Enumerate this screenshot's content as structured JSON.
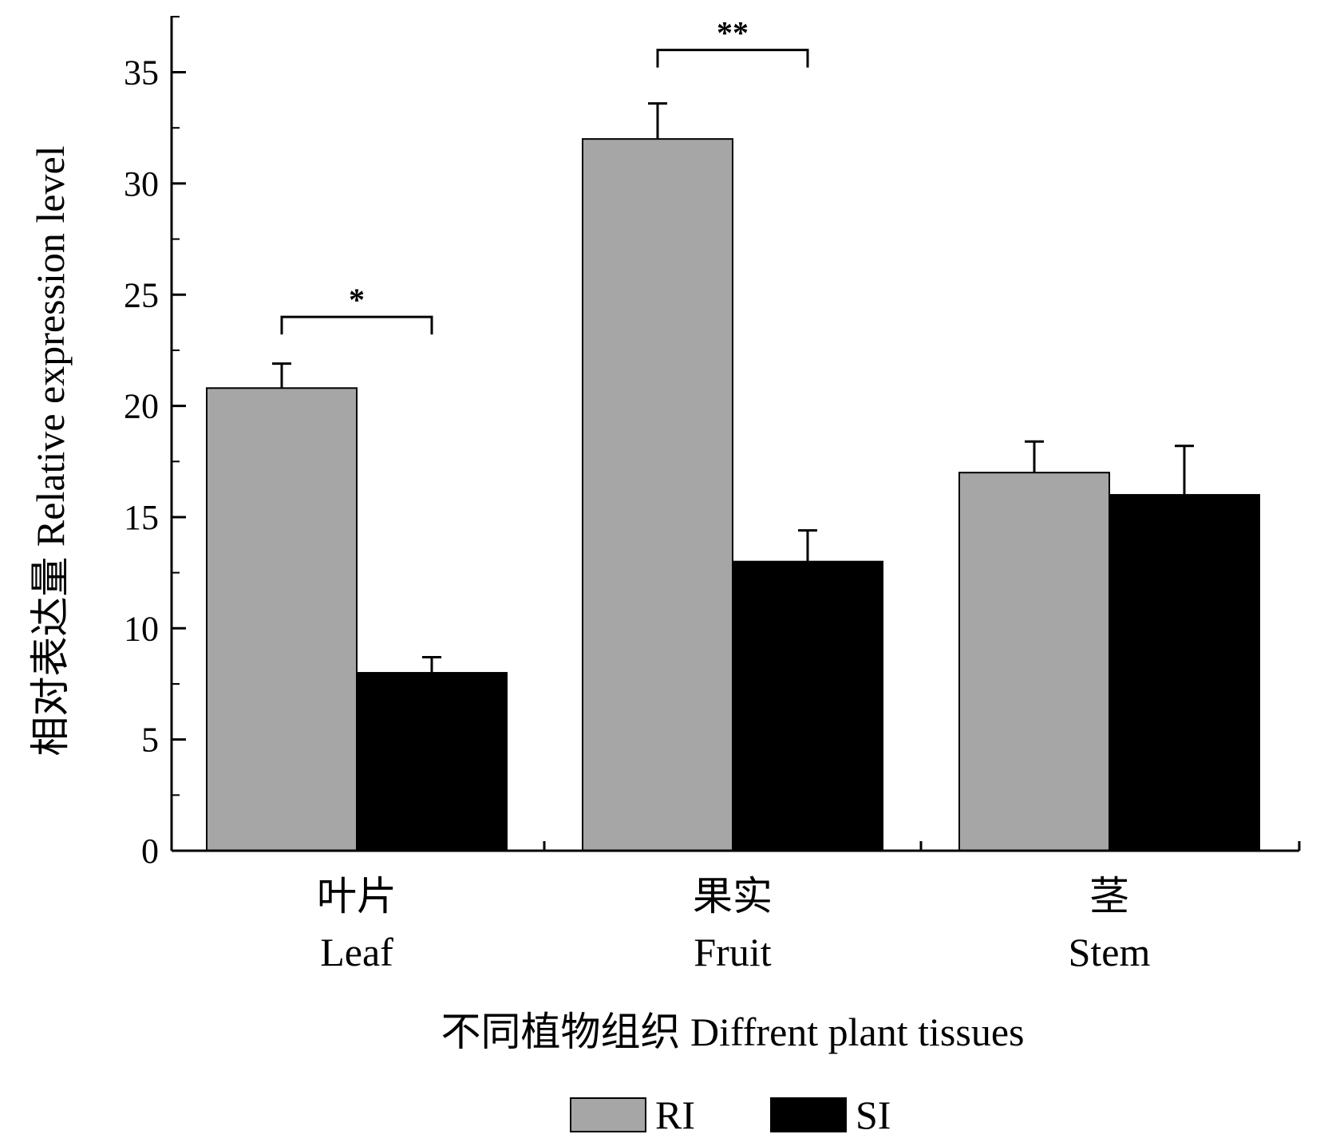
{
  "chart_data": {
    "type": "bar",
    "categories_zh": [
      "叶片",
      "果实",
      "茎"
    ],
    "categories": [
      "Leaf",
      "Fruit",
      "Stem"
    ],
    "series": [
      {
        "name": "RI",
        "color": "#a6a6a6",
        "values": [
          20.8,
          32.0,
          17.0
        ],
        "errors": [
          1.1,
          1.6,
          1.4
        ]
      },
      {
        "name": "SI",
        "color": "#000000",
        "values": [
          8.0,
          13.0,
          16.0
        ],
        "errors": [
          0.7,
          1.4,
          2.2
        ]
      }
    ],
    "significance": [
      {
        "category": "Leaf",
        "label": "*",
        "y": 24.0
      },
      {
        "category": "Fruit",
        "label": "**",
        "y": 36.0
      }
    ],
    "ylabel": "相对表达量 Relative expression level",
    "xlabel": "不同植物组织 Diffrent plant tissues",
    "ylim": [
      0,
      37.5
    ],
    "yticks": [
      0,
      5,
      10,
      15,
      20,
      25,
      30,
      35
    ],
    "ytick_labels": [
      "0",
      "5",
      "10",
      "15",
      "20",
      "25",
      "30",
      "35"
    ],
    "minor_tick_step": 2.5,
    "grid": false,
    "legend_position": "bottom-center"
  }
}
